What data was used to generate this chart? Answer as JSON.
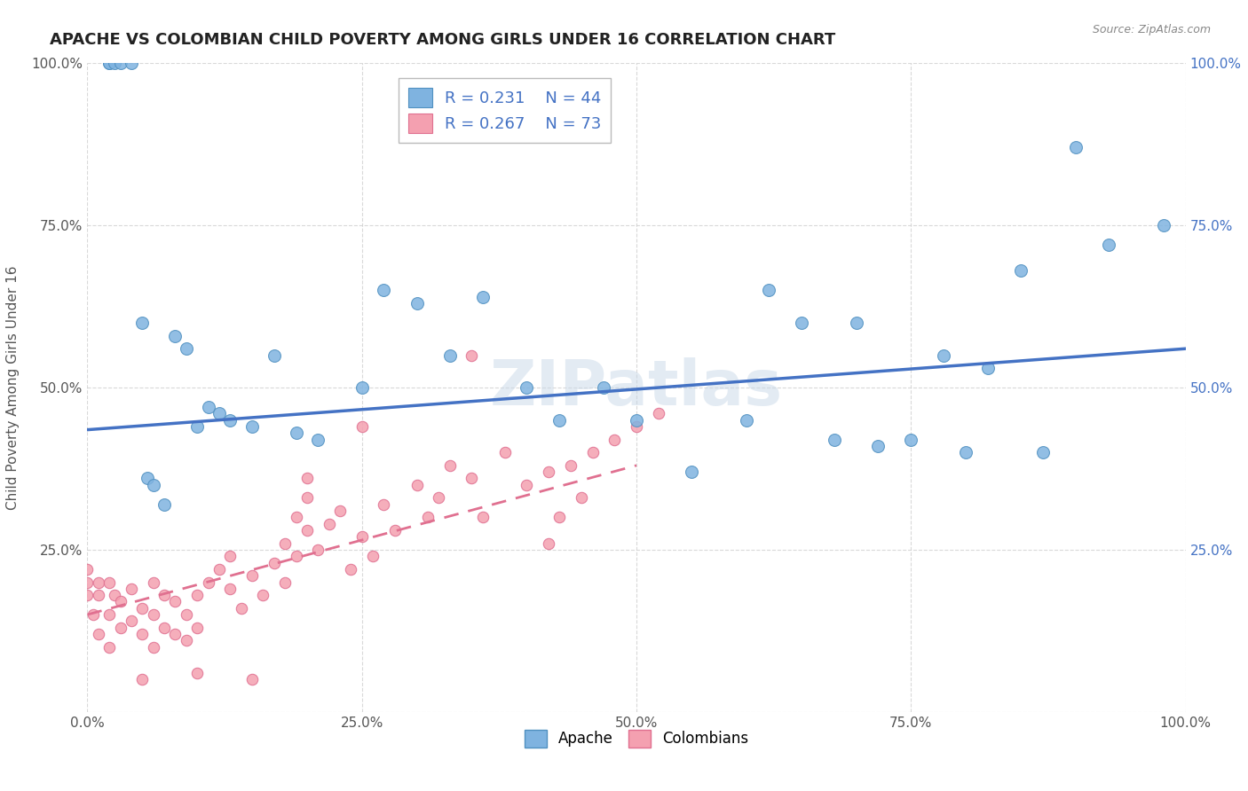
{
  "title": "APACHE VS COLOMBIAN CHILD POVERTY AMONG GIRLS UNDER 16 CORRELATION CHART",
  "source": "Source: ZipAtlas.com",
  "ylabel": "Child Poverty Among Girls Under 16",
  "xlim": [
    0,
    1
  ],
  "ylim": [
    0,
    1
  ],
  "xticks": [
    0,
    0.25,
    0.5,
    0.75,
    1.0
  ],
  "yticks": [
    0,
    0.25,
    0.5,
    0.75,
    1.0
  ],
  "xticklabels": [
    "0.0%",
    "25.0%",
    "50.0%",
    "75.0%",
    "100.0%"
  ],
  "yticklabels": [
    "",
    "25.0%",
    "50.0%",
    "75.0%",
    "100.0%"
  ],
  "apache_color": "#7fb3e0",
  "colombian_color": "#f4a0b0",
  "apache_R": "0.231",
  "apache_N": "44",
  "colombian_R": "0.267",
  "colombian_N": "73",
  "apache_x": [
    0.02,
    0.02,
    0.025,
    0.03,
    0.04,
    0.05,
    0.055,
    0.06,
    0.07,
    0.08,
    0.09,
    0.1,
    0.11,
    0.12,
    0.13,
    0.15,
    0.17,
    0.19,
    0.21,
    0.25,
    0.27,
    0.3,
    0.33,
    0.36,
    0.4,
    0.43,
    0.47,
    0.5,
    0.55,
    0.6,
    0.62,
    0.65,
    0.68,
    0.7,
    0.72,
    0.75,
    0.78,
    0.8,
    0.82,
    0.85,
    0.87,
    0.9,
    0.93,
    0.98
  ],
  "apache_y": [
    1.0,
    1.0,
    1.0,
    1.0,
    1.0,
    0.6,
    0.36,
    0.35,
    0.32,
    0.58,
    0.56,
    0.44,
    0.47,
    0.46,
    0.45,
    0.44,
    0.55,
    0.43,
    0.42,
    0.5,
    0.65,
    0.63,
    0.55,
    0.64,
    0.5,
    0.45,
    0.5,
    0.45,
    0.37,
    0.45,
    0.65,
    0.6,
    0.42,
    0.6,
    0.41,
    0.42,
    0.55,
    0.4,
    0.53,
    0.68,
    0.4,
    0.87,
    0.72,
    0.75
  ],
  "colombian_x": [
    0.0,
    0.0,
    0.0,
    0.005,
    0.01,
    0.01,
    0.01,
    0.02,
    0.02,
    0.02,
    0.025,
    0.03,
    0.03,
    0.04,
    0.04,
    0.05,
    0.05,
    0.06,
    0.06,
    0.06,
    0.07,
    0.07,
    0.08,
    0.08,
    0.09,
    0.09,
    0.1,
    0.1,
    0.11,
    0.12,
    0.13,
    0.13,
    0.14,
    0.15,
    0.16,
    0.17,
    0.18,
    0.18,
    0.19,
    0.19,
    0.2,
    0.2,
    0.21,
    0.22,
    0.23,
    0.24,
    0.25,
    0.26,
    0.27,
    0.28,
    0.3,
    0.31,
    0.32,
    0.33,
    0.35,
    0.36,
    0.38,
    0.4,
    0.42,
    0.44,
    0.46,
    0.48,
    0.5,
    0.52,
    0.42,
    0.43,
    0.45,
    0.35,
    0.25,
    0.2,
    0.05,
    0.1,
    0.15
  ],
  "colombian_y": [
    0.18,
    0.2,
    0.22,
    0.15,
    0.12,
    0.18,
    0.2,
    0.1,
    0.15,
    0.2,
    0.18,
    0.13,
    0.17,
    0.14,
    0.19,
    0.12,
    0.16,
    0.1,
    0.15,
    0.2,
    0.13,
    0.18,
    0.12,
    0.17,
    0.11,
    0.15,
    0.13,
    0.18,
    0.2,
    0.22,
    0.19,
    0.24,
    0.16,
    0.21,
    0.18,
    0.23,
    0.2,
    0.26,
    0.24,
    0.3,
    0.28,
    0.33,
    0.25,
    0.29,
    0.31,
    0.22,
    0.27,
    0.24,
    0.32,
    0.28,
    0.35,
    0.3,
    0.33,
    0.38,
    0.36,
    0.3,
    0.4,
    0.35,
    0.37,
    0.38,
    0.4,
    0.42,
    0.44,
    0.46,
    0.26,
    0.3,
    0.33,
    0.55,
    0.44,
    0.36,
    0.05,
    0.06,
    0.05
  ],
  "apache_line_x": [
    0.0,
    1.0
  ],
  "apache_line_y": [
    0.435,
    0.56
  ],
  "colombian_line_x": [
    0.0,
    0.5
  ],
  "colombian_line_y": [
    0.15,
    0.38
  ],
  "watermark": "ZIPatlas",
  "background_color": "#ffffff",
  "grid_color": "#d0d0d0",
  "title_fontsize": 13,
  "label_fontsize": 11
}
